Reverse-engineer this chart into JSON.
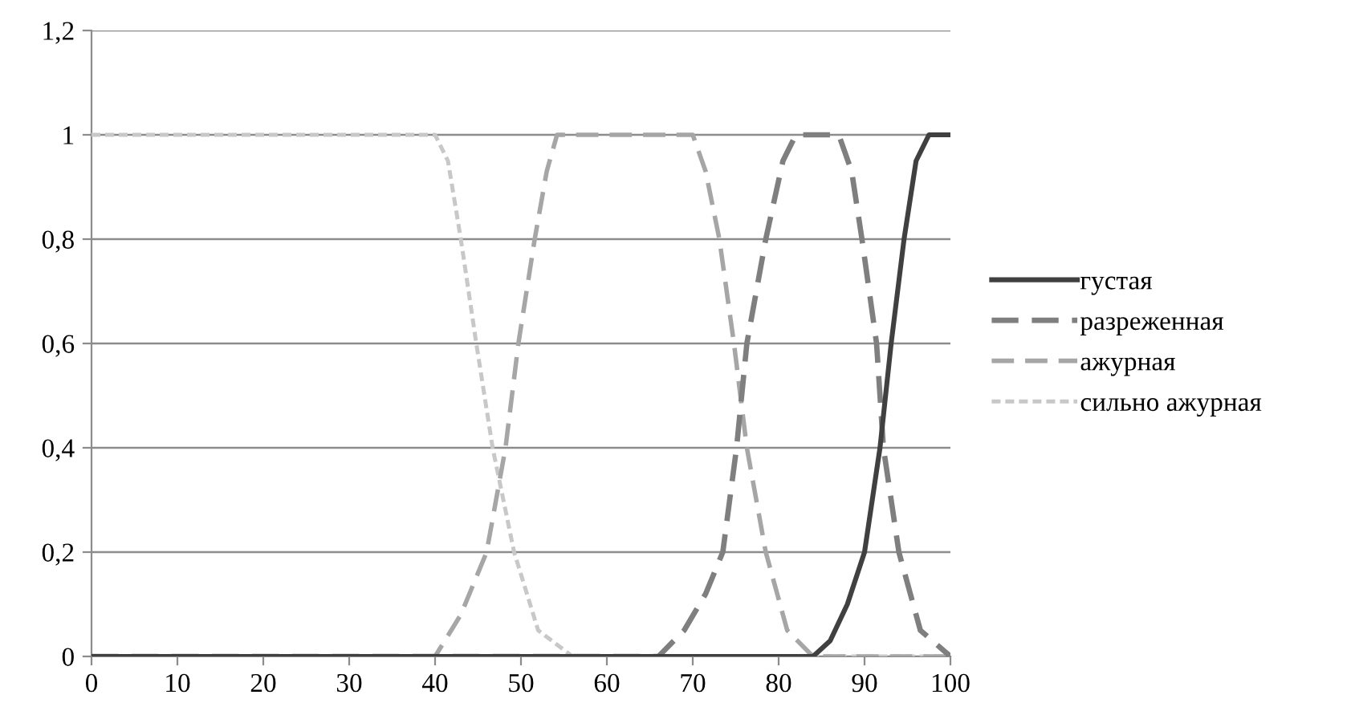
{
  "chart_data": {
    "type": "line",
    "xlim": [
      0,
      100
    ],
    "xticks": [
      0,
      10,
      20,
      30,
      40,
      50,
      60,
      70,
      80,
      90,
      100
    ],
    "ylim": [
      0,
      1.2
    ],
    "yticks": [
      {
        "value": 0,
        "label": "0"
      },
      {
        "value": 0.2,
        "label": "0,2"
      },
      {
        "value": 0.4,
        "label": "0,4"
      },
      {
        "value": 0.6,
        "label": "0,6"
      },
      {
        "value": 0.8,
        "label": "0,8"
      },
      {
        "value": 1,
        "label": "1"
      },
      {
        "value": 1.2,
        "label": "1,2"
      }
    ],
    "grid": "y",
    "legend": "right",
    "marker": "none",
    "series": [
      {
        "name": "густая",
        "color": "#404040",
        "line_style": "solid",
        "x": [
          0,
          84,
          86,
          88,
          90,
          91.8,
          93.1,
          94.6,
          96,
          97.5,
          100
        ],
        "values": [
          0,
          0,
          0.03,
          0.1,
          0.2,
          0.4,
          0.6,
          0.8,
          0.95,
          1,
          1
        ]
      },
      {
        "name": "разреженная",
        "color": "#7f7f7f",
        "line_style": "dashed",
        "x": [
          0,
          66,
          69,
          71.5,
          73.5,
          75.1,
          76.3,
          78.5,
          80.5,
          82,
          87,
          88.5,
          89.7,
          91.4,
          92.2,
          94,
          96.5,
          100
        ],
        "values": [
          0,
          0,
          0.05,
          0.12,
          0.2,
          0.4,
          0.6,
          0.8,
          0.95,
          1,
          1,
          0.93,
          0.8,
          0.6,
          0.4,
          0.2,
          0.05,
          0
        ]
      },
      {
        "name": "ажурная",
        "color": "#a6a6a6",
        "line_style": "dashed",
        "x": [
          0,
          40,
          43,
          46,
          48.2,
          49.7,
          51.6,
          53,
          54.2,
          70,
          71.5,
          73.1,
          74.8,
          76.3,
          78.5,
          81,
          84,
          100
        ],
        "values": [
          0,
          0,
          0.08,
          0.2,
          0.4,
          0.6,
          0.8,
          0.93,
          1,
          1,
          0.93,
          0.8,
          0.6,
          0.4,
          0.2,
          0.05,
          0,
          0
        ]
      },
      {
        "name": "сильно ажурная",
        "color": "#c8c8c8",
        "line_style": "dotted",
        "x": [
          0,
          40,
          41.5,
          43,
          44.8,
          46.7,
          49.2,
          52,
          56,
          100
        ],
        "values": [
          1,
          1,
          0.95,
          0.8,
          0.6,
          0.4,
          0.2,
          0.05,
          0,
          0
        ]
      }
    ]
  }
}
